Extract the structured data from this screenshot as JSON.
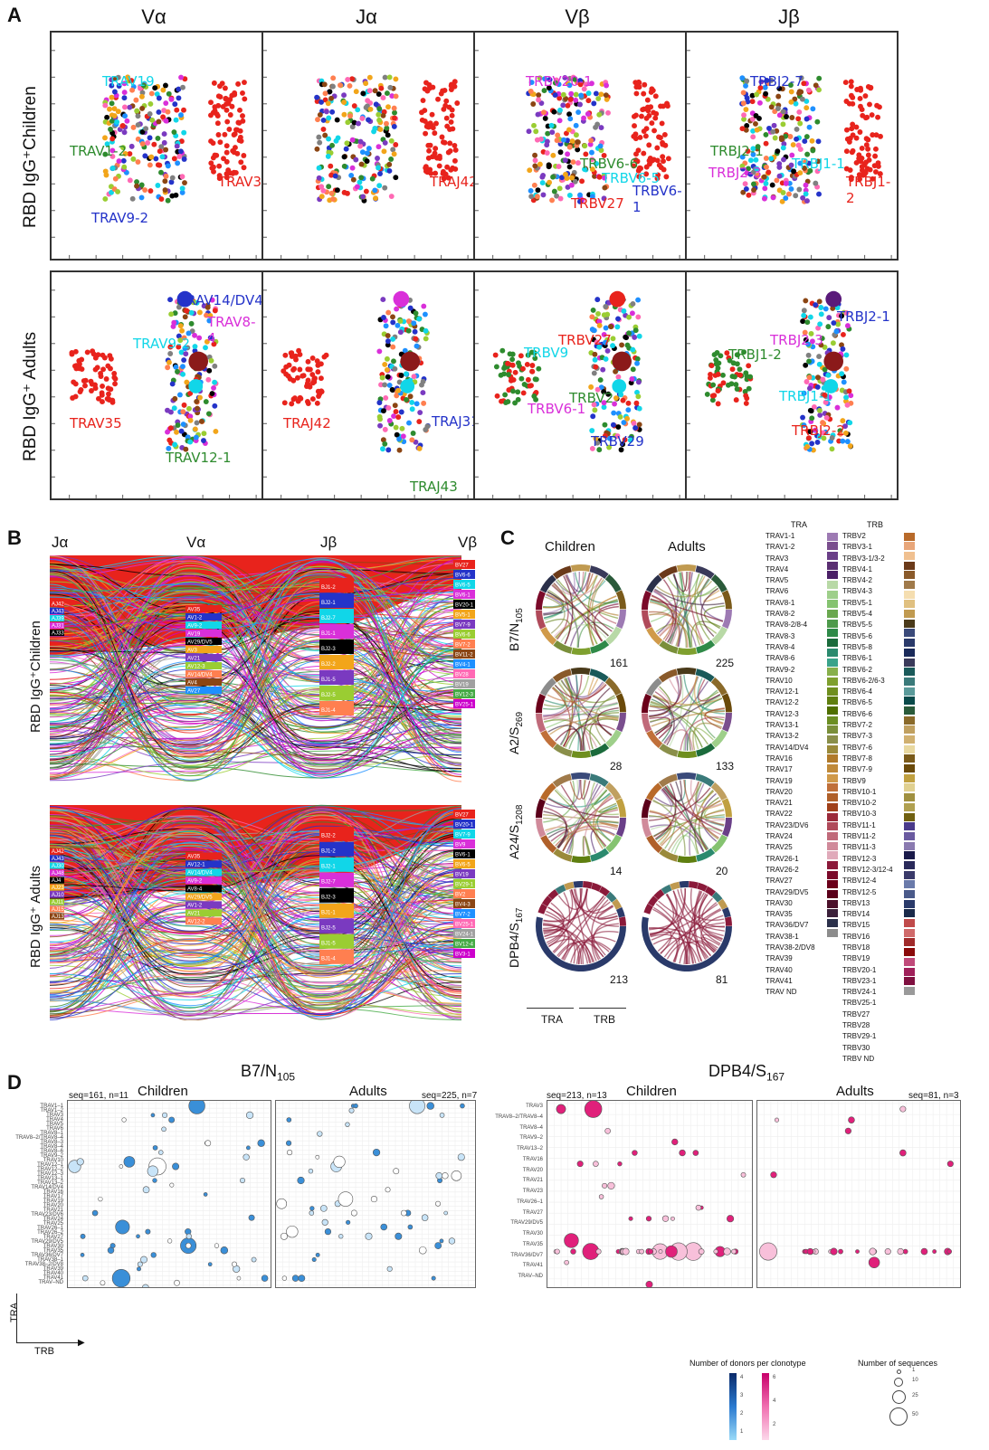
{
  "panels": {
    "A": {
      "letter": "A",
      "columns": [
        "Vα",
        "Jα",
        "Vβ",
        "Jβ"
      ],
      "rows": [
        "RBD IgG⁺Children",
        "RBD IgG⁺ Adults"
      ],
      "children_labels": [
        [
          {
            "t": "TRAV19",
            "c": "#11d6e8"
          },
          {
            "t": "TRAV1-2",
            "c": "#2e8b2e"
          },
          {
            "t": "TRAV35",
            "c": "#e8231c"
          },
          {
            "t": "TRAV9-2",
            "c": "#2433c9"
          }
        ],
        [
          {
            "t": "TRAJ42",
            "c": "#e8231c"
          }
        ],
        [
          {
            "t": "TRBV20-1",
            "c": "#d92fd9"
          },
          {
            "t": "TRBV6-6",
            "c": "#2e8b2e"
          },
          {
            "t": "TRBV6-5",
            "c": "#11d6e8"
          },
          {
            "t": "TRBV6-1",
            "c": "#2433c9"
          },
          {
            "t": "TRBV27",
            "c": "#e8231c"
          }
        ],
        [
          {
            "t": "TRBJ2-7",
            "c": "#2433c9"
          },
          {
            "t": "TRBJ2-1",
            "c": "#2e8b2e"
          },
          {
            "t": "TRBJ2-3",
            "c": "#d92fd9"
          },
          {
            "t": "TRBJ1-1",
            "c": "#11d6e8"
          },
          {
            "t": "TRBJ1-2",
            "c": "#e8231c"
          }
        ]
      ],
      "adults_labels": [
        [
          {
            "t": "TRAV14/DV4",
            "c": "#2433c9"
          },
          {
            "t": "TRAV8-4",
            "c": "#d92fd9"
          },
          {
            "t": "TRAV9-2",
            "c": "#11d6e8"
          },
          {
            "t": "TRAV35",
            "c": "#e8231c"
          },
          {
            "t": "TRAV12-1",
            "c": "#2e8b2e"
          }
        ],
        [
          {
            "t": "TRAJ42",
            "c": "#e8231c"
          },
          {
            "t": "TRAJ31",
            "c": "#2433c9"
          },
          {
            "t": "TRAJ43",
            "c": "#2e8b2e"
          }
        ],
        [
          {
            "t": "TRBV27",
            "c": "#e8231c"
          },
          {
            "t": "TRBV9",
            "c": "#11d6e8"
          },
          {
            "t": "TRBV6-1",
            "c": "#d92fd9"
          },
          {
            "t": "TRBV2",
            "c": "#2e8b2e"
          },
          {
            "t": "TRBV29",
            "c": "#2433c9"
          }
        ],
        [
          {
            "t": "TRBJ2-1",
            "c": "#2433c9"
          },
          {
            "t": "TRBJ2-3",
            "c": "#d92fd9"
          },
          {
            "t": "TRBJ1-2",
            "c": "#2e8b2e"
          },
          {
            "t": "TRBJ1-1",
            "c": "#11d6e8"
          },
          {
            "t": "TRBJ2-2",
            "c": "#e8231c"
          }
        ]
      ]
    },
    "B": {
      "letter": "B",
      "columns": [
        "Jα",
        "Vα",
        "Jβ",
        "Vβ"
      ],
      "rows": [
        "RBD IgG⁺Children",
        "RBD IgG⁺ Adults"
      ],
      "children_left": [
        "AJ42",
        "AJ43",
        "AJ39",
        "AJ31",
        "AJ33"
      ],
      "children_mid": [
        "AV35",
        "AV1-2",
        "AV9-2",
        "AV19",
        "AV29/DV5",
        "AV3",
        "AV21",
        "AV12-3",
        "AV14/DV4",
        "AV4",
        "AV27"
      ],
      "children_jb": [
        "BJ1-2",
        "BJ2-1",
        "BJ2-7",
        "BJ1-1",
        "BJ2-3",
        "BJ2-2",
        "BJ1-5",
        "BJ2-5",
        "BJ1-4"
      ],
      "children_vb": [
        "BV27",
        "BV6-6",
        "BV6-5",
        "BV6-1",
        "BV20-1",
        "BV5-1",
        "BV7-9",
        "BV6-6",
        "BV7-2",
        "BV11-2",
        "BV4-1",
        "BV28",
        "BV19",
        "BV12-3",
        "BV25-1"
      ],
      "adults_left": [
        "AJ42",
        "AJ43",
        "AJ30",
        "AJ48",
        "AJ4",
        "AJ23",
        "AJ10",
        "AJ11",
        "AJ15",
        "AJ13"
      ],
      "adults_mid": [
        "AV35",
        "AV12-1",
        "AV14/DV4",
        "AV9-2",
        "AV8-4",
        "AV29/DV5",
        "AV1-2",
        "AV21",
        "AV12-2"
      ],
      "adults_jb": [
        "BJ2-2",
        "BJ1-2",
        "BJ2-1",
        "BJ2-7",
        "BJ2-3",
        "BJ1-1",
        "BJ2-5",
        "BJ1-5",
        "BJ1-4"
      ],
      "adults_vb": [
        "BV27",
        "BV20-1",
        "BV7-9",
        "BV9",
        "BV6-1",
        "BV6-5",
        "BV19",
        "BV29-1",
        "BV2",
        "BV4-3",
        "BV7-2",
        "BV25-1",
        "BV24-1",
        "BV12-4",
        "BV3-1"
      ]
    },
    "C": {
      "letter": "C",
      "col_heads": [
        "Children",
        "Adults"
      ],
      "rows": [
        {
          "label": "B7/N",
          "sub": "105",
          "children_n": "161",
          "adults_n": "225"
        },
        {
          "label": "A2/S",
          "sub": "269",
          "children_n": "28",
          "adults_n": "133"
        },
        {
          "label": "A24/S",
          "sub": "1208",
          "children_n": "14",
          "adults_n": "20"
        },
        {
          "label": "DPB4/S",
          "sub": "167",
          "children_n": "213",
          "adults_n": "81"
        }
      ],
      "axis": [
        "TRA",
        "TRB"
      ],
      "tra_title": "TRA",
      "trb_title": "TRB",
      "tra": [
        "TRAV1-1",
        "TRAV1-2",
        "TRAV3",
        "TRAV4",
        "TRAV5",
        "TRAV6",
        "TRAV8-1",
        "TRAV8-2",
        "TRAV8-2/8-4",
        "TRAV8-3",
        "TRAV8-4",
        "TRAV8-6",
        "TRAV9-2",
        "TRAV10",
        "TRAV12-1",
        "TRAV12-2",
        "TRAV12-3",
        "TRAV13-1",
        "TRAV13-2",
        "TRAV14/DV4",
        "TRAV16",
        "TRAV17",
        "TRAV19",
        "TRAV20",
        "TRAV21",
        "TRAV22",
        "TRAV23/DV6",
        "TRAV24",
        "TRAV25",
        "TRAV26-1",
        "TRAV26-2",
        "TRAV27",
        "TRAV29/DV5",
        "TRAV30",
        "TRAV35",
        "TRAV36/DV7",
        "TRAV38-1",
        "TRAV38-2/DV8",
        "TRAV39",
        "TRAV40",
        "TRAV41",
        "TRAV ND"
      ],
      "tra_colors": [
        "#9d7ab3",
        "#7a4e8e",
        "#6a3f88",
        "#5a2f72",
        "#4b2067",
        "#b8d9a6",
        "#9ecf8a",
        "#85c370",
        "#6aa84f",
        "#4e9a4b",
        "#2f8a48",
        "#1b6b3c",
        "#2b8a6e",
        "#3aa38a",
        "#88b04b",
        "#7fa02f",
        "#6f8f1f",
        "#5f7f10",
        "#4f6f00",
        "#6b8e23",
        "#7a8f3a",
        "#8a8f4a",
        "#9a8a3a",
        "#b07a2a",
        "#c08a3a",
        "#d09a4a",
        "#c0703a",
        "#b0602a",
        "#a0401a",
        "#9b2a3a",
        "#b04a5a",
        "#c06a7a",
        "#d08a9a",
        "#e0aaba",
        "#8b1a3a",
        "#7b0a2a",
        "#6b001a",
        "#5b001a",
        "#4b102a",
        "#3b203a",
        "#2b304a",
        "#8c8c8c"
      ],
      "trb": [
        "TRBV2",
        "TRBV3-1",
        "TRBV3-1/3-2",
        "TRBV4-1",
        "TRBV4-2",
        "TRBV4-3",
        "TRBV5-1",
        "TRBV5-4",
        "TRBV5-5",
        "TRBV5-6",
        "TRBV5-8",
        "TRBV6-1",
        "TRBV6-2",
        "TRBV6-2/6-3",
        "TRBV6-4",
        "TRBV6-5",
        "TRBV6-6",
        "TRBV7-2",
        "TRBV7-3",
        "TRBV7-6",
        "TRBV7-8",
        "TRBV7-9",
        "TRBV9",
        "TRBV10-1",
        "TRBV10-2",
        "TRBV10-3",
        "TRBV11-1",
        "TRBV11-2",
        "TRBV11-3",
        "TRBV12-3",
        "TRBV12-3/12-4",
        "TRBV12-4",
        "TRBV12-5",
        "TRBV13",
        "TRBV14",
        "TRBV15",
        "TRBV16",
        "TRBV18",
        "TRBV19",
        "TRBV20-1",
        "TRBV23-1",
        "TRBV24-1",
        "TRBV25-1",
        "TRBV27",
        "TRBV28",
        "TRBV29-1",
        "TRBV30",
        "TRBV ND"
      ],
      "trb_colors": [
        "#b86a2a",
        "#e8a67a",
        "#f0c090",
        "#6b3a1a",
        "#8a5a2a",
        "#a07a4a",
        "#f5deb0",
        "#e0c080",
        "#c09a50",
        "#4a3a1a",
        "#3a4a7a",
        "#2a3a6a",
        "#1a2a5a",
        "#3a3a5a",
        "#1a5a5a",
        "#3a7a7a",
        "#5a9a9a",
        "#0a4a4a",
        "#2a5a3a",
        "#8a6a2a",
        "#c0a060",
        "#d0b070",
        "#e8d8a0",
        "#7a5a1a",
        "#6a4a0a",
        "#c0a040",
        "#e0d090",
        "#a09040",
        "#b0a050",
        "#706010",
        "#4a3a8a",
        "#6a5aa0",
        "#8a7ab0",
        "#1a1a4a",
        "#2a2a5a",
        "#3a3a6a",
        "#6a7aaa",
        "#4a5a8a",
        "#2a3a6a",
        "#1a2a4a",
        "#c04a4a",
        "#d06a6a",
        "#a02a2a",
        "#8a0a0a",
        "#c04a7a",
        "#a0205a",
        "#801040",
        "#9a9a9a"
      ]
    },
    "D": {
      "letter": "D",
      "title_left": "B7/N",
      "title_left_sub": "105",
      "title_right": "DPB4/S",
      "title_right_sub": "167",
      "subpanels": [
        {
          "cohort": "Children",
          "meta": "seq=161, n=11"
        },
        {
          "cohort": "Adults",
          "meta": "seq=225, n=7"
        },
        {
          "cohort": "Children",
          "meta": "seq=213, n=13"
        },
        {
          "cohort": "Adults",
          "meta": "seq=81, n=3"
        }
      ],
      "left_rows": [
        "TRAV1–1",
        "TRAV1–2",
        "TRAV3",
        "TRAV4",
        "TRAV5",
        "TRAV6",
        "TRAV8–1",
        "TRAV8–2/TRAV8–4",
        "TRAV8–3",
        "TRAV8–4",
        "TRAV8–6",
        "TRAV9–2",
        "TRAV10",
        "TRAV12–1",
        "TRAV12–2",
        "TRAV12–3",
        "TRAV13–1",
        "TRAV13–2",
        "TRAV14/DV4",
        "TRAV16",
        "TRAV17",
        "TRAV19",
        "TRAV20",
        "TRAV21",
        "TRAV23/DV6",
        "TRAV24",
        "TRAV25",
        "TRAV26–1",
        "TRAV26–2",
        "TRAV27",
        "TRAV29/DV5",
        "TRAV30",
        "TRAV35",
        "TRAV36/DV7",
        "TRAV38–1",
        "TRAV38–2/DV8",
        "TRAV39",
        "TRAV40",
        "TRAV41",
        "TRAV–ND"
      ],
      "right_rows": [
        "TRAV3",
        "TRAV8–2/TRAV8–4",
        "TRAV8–4",
        "TRAV9–2",
        "TRAV13–2",
        "TRAV16",
        "TRAV20",
        "TRAV21",
        "TRAV23",
        "TRAV26–1",
        "TRAV27",
        "TRAV29/DV5",
        "TRAV30",
        "TRAV35",
        "TRAV36/DV7",
        "TRAV41",
        "TRAV–ND"
      ],
      "axis_y": "TRA",
      "axis_x": "TRB",
      "legend_donors": "Number of donors per clonotype",
      "legend_seqs": "Number of sequences",
      "donor_ticks_blue": [
        "4",
        "3",
        "2",
        "1"
      ],
      "donor_ticks_pink": [
        "6",
        "4",
        "2"
      ],
      "seq_ticks": [
        "1",
        "10",
        "25",
        "50"
      ]
    }
  },
  "colors": {
    "red": "#e8231c",
    "green": "#2e8b2e",
    "blue": "#2433c9",
    "cyan": "#11d6e8",
    "magenta": "#d92fd9",
    "pink": "#e0207a",
    "lightblue": "#3a8fd8"
  }
}
